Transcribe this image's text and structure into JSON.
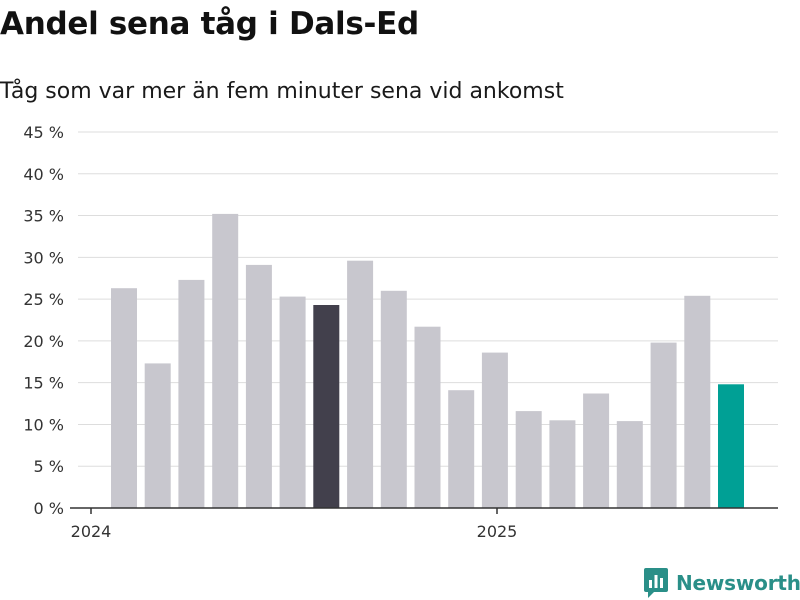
{
  "chart_data": {
    "type": "bar",
    "title": "Andel sena tåg i Dals-Ed",
    "subtitle": "Tåg som var mer än fem minuter sena vid ankomst",
    "x_tick_labels": [
      "2024",
      "2025"
    ],
    "y_ticks": [
      0,
      5,
      10,
      15,
      20,
      25,
      30,
      35,
      40,
      45
    ],
    "y_tick_suffix": " %",
    "ylim": [
      0,
      45
    ],
    "grid": true,
    "values": [
      26.3,
      17.3,
      27.3,
      35.2,
      29.1,
      25.3,
      24.3,
      29.6,
      26.0,
      21.7,
      14.1,
      18.6,
      11.6,
      10.5,
      13.7,
      10.4,
      19.8,
      25.4,
      14.8
    ],
    "highlight": {
      "dark_index": 6,
      "accent_index": 18
    },
    "colors": {
      "bar": "#c8c7ce",
      "bar_dark": "#42404c",
      "bar_accent": "#00a095",
      "grid": "#dddddd",
      "axis": "#333333",
      "tick_text": "#333333"
    }
  },
  "brand": {
    "name": "Newsworthy",
    "icon": "newsworthy-logo-icon",
    "color": "#2a8f88"
  }
}
